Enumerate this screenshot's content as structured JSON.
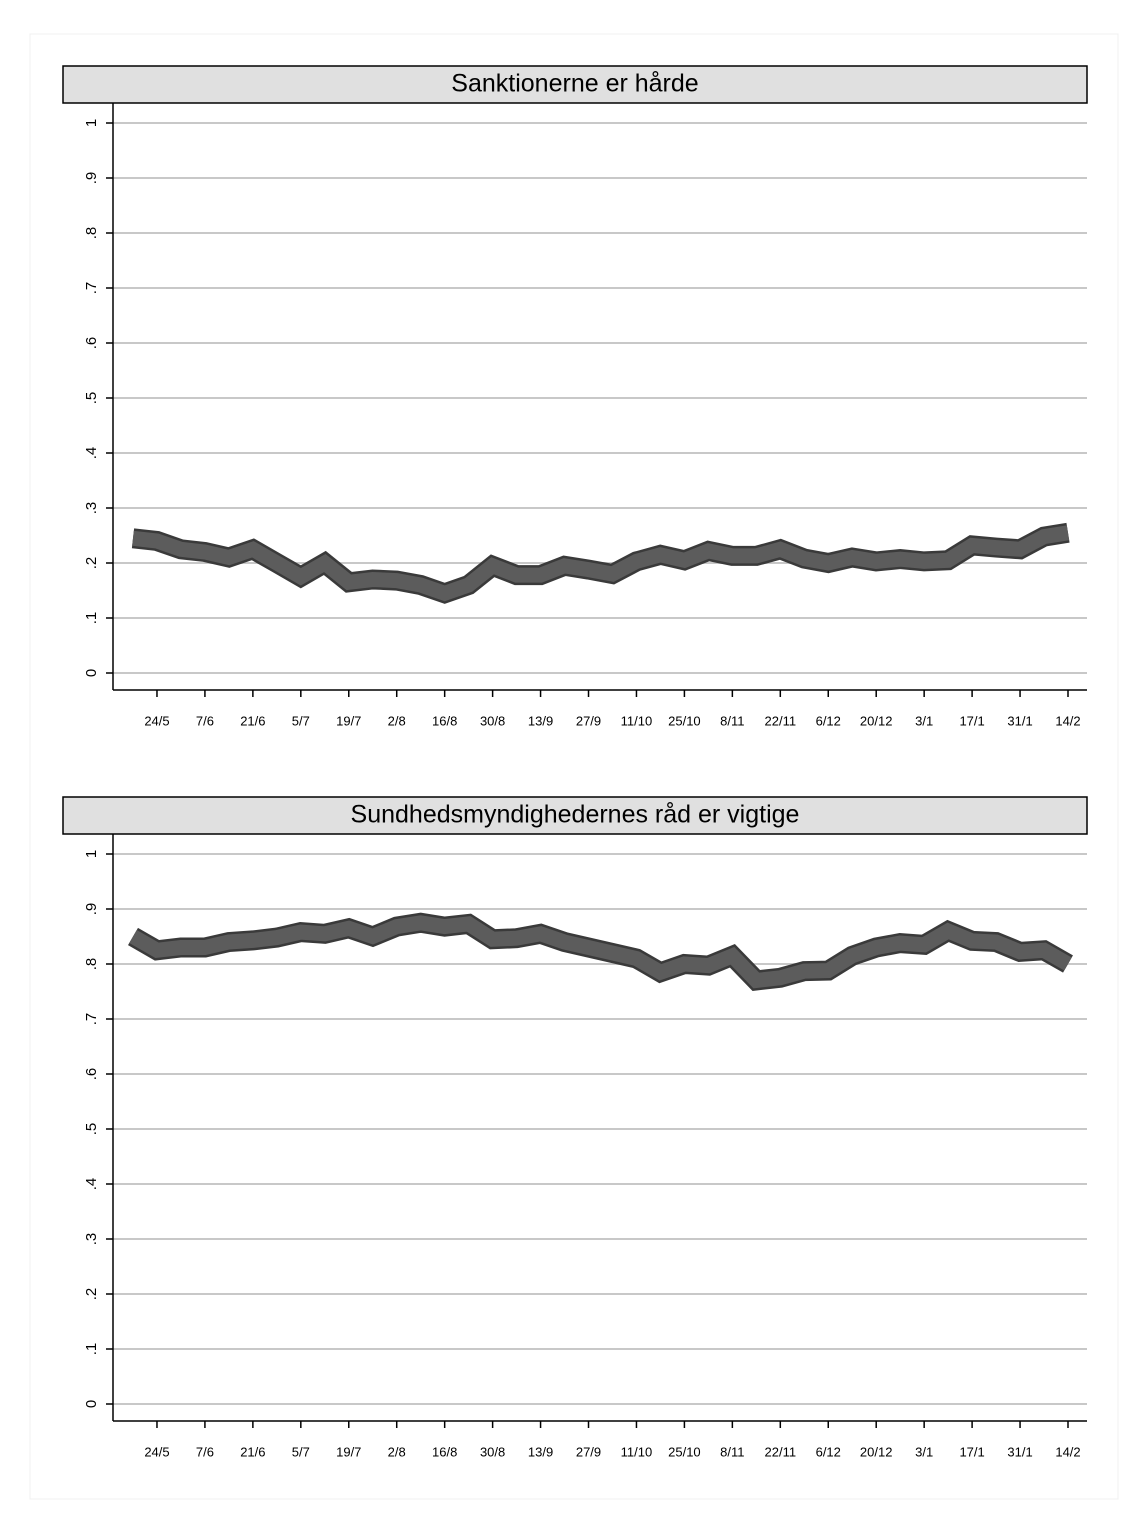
{
  "chart_data": [
    {
      "type": "line",
      "title": "Sanktionerne er hårde",
      "color": "#5c5c5c",
      "grid": true,
      "categories": [
        null,
        "24/5",
        null,
        "7/6",
        null,
        "21/6",
        null,
        "5/7",
        null,
        "19/7",
        null,
        "2/8",
        null,
        "16/8",
        null,
        "30/8",
        null,
        "13/9",
        null,
        "27/9",
        null,
        "11/10",
        null,
        "25/10",
        null,
        "8/11",
        null,
        "22/11",
        null,
        "6/12",
        null,
        "20/12",
        null,
        "3/1",
        null,
        "17/1",
        null,
        "31/1",
        null,
        "14/2"
      ],
      "values": [
        0.245,
        0.24,
        0.225,
        0.22,
        0.21,
        0.225,
        0.2,
        0.175,
        0.2,
        0.165,
        0.17,
        0.168,
        0.16,
        0.145,
        0.16,
        0.195,
        0.178,
        0.178,
        0.195,
        0.188,
        0.18,
        0.203,
        0.215,
        0.205,
        0.222,
        0.213,
        0.213,
        0.225,
        0.208,
        0.2,
        0.21,
        0.203,
        0.207,
        0.203,
        0.205,
        0.232,
        0.228,
        0.225,
        0.248,
        0.255
      ],
      "ylim": [
        0,
        1
      ],
      "yticks": [
        0,
        {
          "value": 0.1,
          "label": ".1"
        },
        {
          "value": 0.2,
          "label": ".2"
        },
        {
          "value": 0.3,
          "label": ".3"
        },
        {
          "value": 0.4,
          "label": ".4"
        },
        {
          "value": 0.5,
          "label": ".5"
        },
        {
          "value": 0.6,
          "label": ".6"
        },
        {
          "value": 0.7,
          "label": ".7"
        },
        {
          "value": 0.8,
          "label": ".8"
        },
        {
          "value": 0.9,
          "label": ".9"
        },
        1
      ]
    },
    {
      "type": "line",
      "title": "Sundhedsmyndighedernes råd er vigtige",
      "color": "#5c5c5c",
      "grid": true,
      "categories": [
        null,
        "24/5",
        null,
        "7/6",
        null,
        "21/6",
        null,
        "5/7",
        null,
        "19/7",
        null,
        "2/8",
        null,
        "16/8",
        null,
        "30/8",
        null,
        "13/9",
        null,
        "27/9",
        null,
        "11/10",
        null,
        "25/10",
        null,
        "8/11",
        null,
        "22/11",
        null,
        "6/12",
        null,
        "20/12",
        null,
        "3/1",
        null,
        "17/1",
        null,
        "31/1",
        null,
        "14/2"
      ],
      "values": [
        0.85,
        0.825,
        0.83,
        0.83,
        0.84,
        0.843,
        0.848,
        0.858,
        0.855,
        0.865,
        0.85,
        0.868,
        0.875,
        0.868,
        0.873,
        0.845,
        0.847,
        0.855,
        0.84,
        0.83,
        0.82,
        0.81,
        0.785,
        0.8,
        0.797,
        0.815,
        0.77,
        0.775,
        0.787,
        0.788,
        0.815,
        0.83,
        0.838,
        0.835,
        0.86,
        0.842,
        0.84,
        0.822,
        0.825,
        0.8
      ],
      "ylim": [
        0,
        1
      ],
      "yticks": [
        0,
        {
          "value": 0.1,
          "label": ".1"
        },
        {
          "value": 0.2,
          "label": ".2"
        },
        {
          "value": 0.3,
          "label": ".3"
        },
        {
          "value": 0.4,
          "label": ".4"
        },
        {
          "value": 0.5,
          "label": ".5"
        },
        {
          "value": 0.6,
          "label": ".6"
        },
        {
          "value": 0.7,
          "label": ".7"
        },
        {
          "value": 0.8,
          "label": ".8"
        },
        {
          "value": 0.9,
          "label": ".9"
        },
        1
      ]
    }
  ]
}
